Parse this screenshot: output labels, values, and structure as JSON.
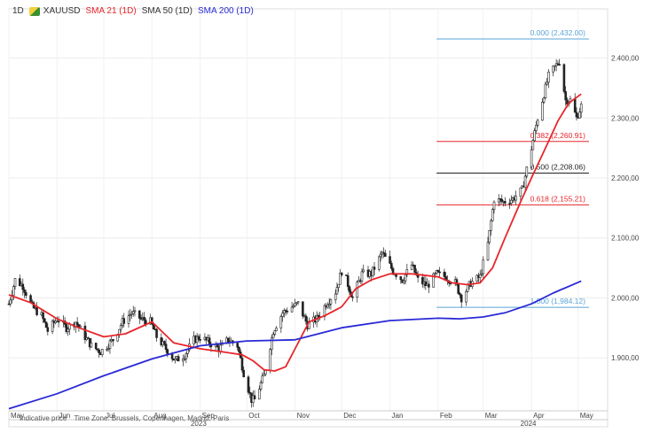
{
  "legend": {
    "timeframe": "1D",
    "symbol": "XAUUSD",
    "sma21": "SMA 21 (1D)",
    "sma50": "SMA 50 (1D)",
    "sma200": "SMA 200 (1D)",
    "symbol_icon": "gold-symbol-icon"
  },
  "footer": {
    "price_note": "Indicative price",
    "timezone": "Time Zone: Brussels, Copenhagen, Madrid, Paris"
  },
  "colors": {
    "sma21": "#e8262b",
    "sma50": "#333333",
    "sma200": "#2a2ad6",
    "fib_0": "#5aa5d8",
    "fib_382": "#e8262b",
    "fib_500": "#222222",
    "fib_618": "#e8262b",
    "fib_100": "#5aa5d8",
    "candle": "#222222"
  },
  "chart_data": {
    "type": "line",
    "ylim": [
      1810,
      2460
    ],
    "y_ticks": [
      {
        "value": 1900,
        "label": "1.900,00"
      },
      {
        "value": 2000,
        "label": "2.000,00"
      },
      {
        "value": 2100,
        "label": "2.100,00"
      },
      {
        "value": 2200,
        "label": "2.200,00"
      },
      {
        "value": 2300,
        "label": "2.300,00"
      },
      {
        "value": 2400,
        "label": "2.400,00"
      }
    ],
    "x_month_labels": [
      "May",
      "Jun",
      "Jul",
      "Aug",
      "Sep",
      "Oct",
      "Nov",
      "Dec",
      "Jan",
      "Feb",
      "Mar",
      "Apr",
      "May"
    ],
    "x_month_positions": [
      "2023-05-01",
      "2023-06-01",
      "2023-07-01",
      "2023-08-01",
      "2023-09-01",
      "2023-10-01",
      "2023-11-01",
      "2023-12-01",
      "2024-01-01",
      "2024-02-01",
      "2024-03-01",
      "2024-04-01",
      "2024-05-01"
    ],
    "x_year_labels": [
      {
        "label": "2023",
        "date": "2023-08-31"
      },
      {
        "label": "2024",
        "date": "2024-03-30"
      }
    ],
    "x_range": [
      "2023-05-01",
      "2024-05-20"
    ],
    "fib_levels": [
      {
        "label": "0.000 (2,432.00)",
        "value": 2432.0,
        "start": "2024-01-31"
      },
      {
        "label": "0.382 (2,260.91)",
        "value": 2260.91,
        "start": "2024-01-31"
      },
      {
        "label": "0.500 (2,208.06)",
        "value": 2208.06,
        "start": "2024-01-31"
      },
      {
        "label": "0.618 (2,155.21)",
        "value": 2155.21,
        "start": "2024-01-31"
      },
      {
        "label": "1.000 (1,984.12)",
        "value": 1984.12,
        "start": "2024-01-31"
      }
    ],
    "fib_end": "2024-05-08",
    "series": [
      {
        "name": "XAUUSD",
        "style": "candles",
        "x": [
          "2023-05-01",
          "2023-05-05",
          "2023-05-10",
          "2023-05-16",
          "2023-05-22",
          "2023-05-26",
          "2023-06-01",
          "2023-06-07",
          "2023-06-13",
          "2023-06-19",
          "2023-06-23",
          "2023-06-29",
          "2023-07-03",
          "2023-07-07",
          "2023-07-13",
          "2023-07-19",
          "2023-07-25",
          "2023-07-31",
          "2023-08-04",
          "2023-08-10",
          "2023-08-16",
          "2023-08-22",
          "2023-08-28",
          "2023-09-01",
          "2023-09-07",
          "2023-09-13",
          "2023-09-19",
          "2023-09-25",
          "2023-09-29",
          "2023-10-04",
          "2023-10-06",
          "2023-10-12",
          "2023-10-18",
          "2023-10-24",
          "2023-10-30",
          "2023-11-03",
          "2023-11-09",
          "2023-11-15",
          "2023-11-21",
          "2023-11-27",
          "2023-12-01",
          "2023-12-04",
          "2023-12-08",
          "2023-12-14",
          "2023-12-20",
          "2023-12-27",
          "2024-01-03",
          "2024-01-09",
          "2024-01-15",
          "2024-01-19",
          "2024-01-25",
          "2024-01-31",
          "2024-02-06",
          "2024-02-12",
          "2024-02-16",
          "2024-02-22",
          "2024-02-28",
          "2024-03-04",
          "2024-03-08",
          "2024-03-14",
          "2024-03-20",
          "2024-03-26",
          "2024-04-01",
          "2024-04-05",
          "2024-04-09",
          "2024-04-12",
          "2024-04-16",
          "2024-04-19",
          "2024-04-23",
          "2024-04-26",
          "2024-04-30",
          "2024-05-03"
        ],
        "values": [
          1990,
          2030,
          2020,
          1985,
          1970,
          1945,
          1965,
          1950,
          1960,
          1935,
          1920,
          1910,
          1920,
          1930,
          1960,
          1975,
          1965,
          1960,
          1935,
          1915,
          1895,
          1905,
          1930,
          1935,
          1925,
          1915,
          1930,
          1920,
          1875,
          1830,
          1830,
          1870,
          1945,
          1975,
          1985,
          1990,
          1955,
          1965,
          1990,
          2010,
          2045,
          2030,
          2000,
          2040,
          2040,
          2075,
          2045,
          2030,
          2055,
          2030,
          2020,
          2040,
          2035,
          2025,
          2000,
          2025,
          2035,
          2090,
          2165,
          2160,
          2165,
          2180,
          2250,
          2300,
          2340,
          2370,
          2385,
          2395,
          2330,
          2330,
          2300,
          2320
        ]
      },
      {
        "name": "SMA 21 (1D)",
        "x": [
          "2023-05-01",
          "2023-05-15",
          "2023-06-01",
          "2023-06-15",
          "2023-07-01",
          "2023-07-15",
          "2023-08-01",
          "2023-08-15",
          "2023-09-01",
          "2023-09-15",
          "2023-09-28",
          "2023-10-05",
          "2023-10-12",
          "2023-10-19",
          "2023-10-26",
          "2023-11-02",
          "2023-11-10",
          "2023-11-20",
          "2023-12-01",
          "2023-12-10",
          "2023-12-20",
          "2024-01-01",
          "2024-01-15",
          "2024-02-01",
          "2024-02-10",
          "2024-02-20",
          "2024-02-28",
          "2024-03-07",
          "2024-03-15",
          "2024-03-25",
          "2024-04-01",
          "2024-04-10",
          "2024-04-18",
          "2024-04-25",
          "2024-05-03"
        ],
        "values": [
          2005,
          1992,
          1965,
          1950,
          1935,
          1940,
          1960,
          1925,
          1915,
          1910,
          1905,
          1895,
          1880,
          1878,
          1885,
          1920,
          1960,
          1970,
          1985,
          2015,
          2030,
          2040,
          2040,
          2035,
          2025,
          2022,
          2025,
          2050,
          2100,
          2160,
          2200,
          2250,
          2295,
          2325,
          2340
        ]
      },
      {
        "name": "SMA 200 (1D)",
        "x": [
          "2023-05-01",
          "2023-06-01",
          "2023-07-01",
          "2023-08-01",
          "2023-09-01",
          "2023-10-01",
          "2023-11-01",
          "2023-12-01",
          "2024-01-01",
          "2024-02-01",
          "2024-02-15",
          "2024-03-01",
          "2024-03-15",
          "2024-04-01",
          "2024-04-15",
          "2024-05-03"
        ],
        "values": [
          1815,
          1840,
          1870,
          1898,
          1920,
          1928,
          1930,
          1950,
          1962,
          1966,
          1965,
          1968,
          1975,
          1990,
          2008,
          2028
        ]
      }
    ]
  }
}
